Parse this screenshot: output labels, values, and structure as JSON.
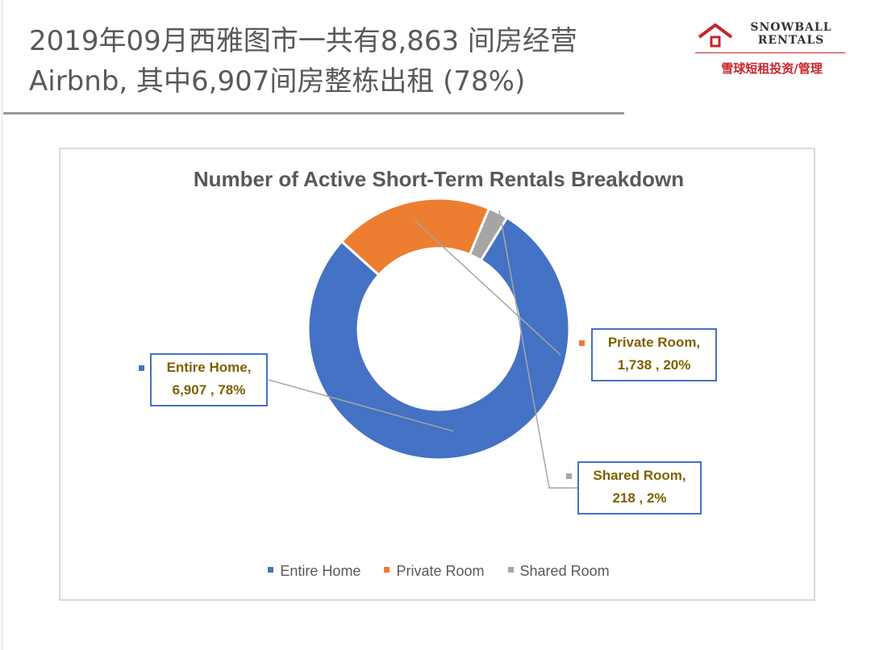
{
  "header": {
    "headline_line1": "2019年09月西雅图市一共有8,863 间房经营",
    "headline_line2": "Airbnb, 其中6,907间房整栋出租 (78%)"
  },
  "logo": {
    "line1": "SNOWBALL",
    "line2": "RENTALS",
    "subtitle": "雪球短租投资/管理",
    "icon": "house-icon",
    "brand_color": "#c9252b"
  },
  "colors": {
    "entire_home": "#4472c4",
    "private_room": "#ed7d31",
    "shared_room": "#a5a5a5",
    "label_text": "#7f6000"
  },
  "chart_data": {
    "type": "pie",
    "variant": "donut",
    "title": "Number of Active Short-Term Rentals Breakdown",
    "categories": [
      "Entire Home",
      "Private Room",
      "Shared Room"
    ],
    "values": [
      6907,
      1738,
      218
    ],
    "percentages": [
      78,
      20,
      2
    ],
    "data_labels": [
      {
        "name": "Entire Home,",
        "value": "6,907 , 78%"
      },
      {
        "name": "Private Room,",
        "value": "1,738 , 20%"
      },
      {
        "name": "Shared Room,",
        "value": "218 , 2%"
      }
    ],
    "legend": [
      "Entire Home",
      "Private Room",
      "Shared Room"
    ],
    "legend_position": "bottom"
  }
}
